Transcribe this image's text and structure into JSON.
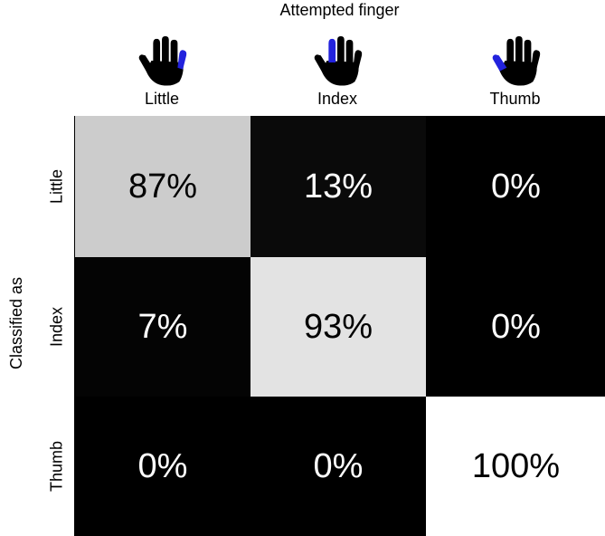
{
  "chart_data": {
    "type": "heatmap",
    "xlabel": "Attempted finger",
    "ylabel": "Classified as",
    "columns": [
      "Little",
      "Index",
      "Thumb"
    ],
    "rows": [
      "Little",
      "Index",
      "Thumb"
    ],
    "values": [
      [
        87,
        13,
        0
      ],
      [
        7,
        93,
        0
      ],
      [
        0,
        0,
        100
      ]
    ],
    "labels": [
      [
        "87%",
        "13%",
        "0%"
      ],
      [
        "7%",
        "93%",
        "0%"
      ],
      [
        "0%",
        "0%",
        "100%"
      ]
    ],
    "colormap": "grayscale",
    "highlight_color": "#2222dd"
  }
}
